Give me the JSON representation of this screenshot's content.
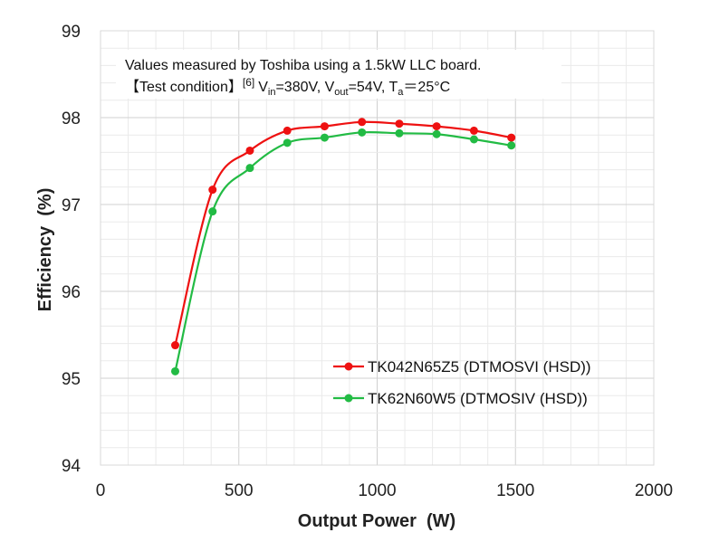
{
  "chart_data": {
    "type": "line",
    "title": "",
    "xlabel": "Output Power  (W)",
    "ylabel": "Efficiency  (%)",
    "xlim": [
      0,
      2000
    ],
    "ylim": [
      94,
      99
    ],
    "x_ticks": [
      0,
      500,
      1000,
      1500,
      2000
    ],
    "y_ticks": [
      94,
      95,
      96,
      97,
      98,
      99
    ],
    "x_ticks_labels": [
      "0",
      "500",
      "1000",
      "1500",
      "2000"
    ],
    "y_ticks_labels": [
      "94",
      "95",
      "96",
      "97",
      "98",
      "99"
    ],
    "grid": true,
    "legend_position": "lower-right",
    "series": [
      {
        "name": "TK042N65Z5 (DTMOSVI (HSD))",
        "color": "#ee1111",
        "x": [
          270,
          405,
          540,
          675,
          810,
          945,
          1080,
          1215,
          1350,
          1485
        ],
        "values": [
          95.38,
          97.17,
          97.62,
          97.85,
          97.9,
          97.95,
          97.93,
          97.9,
          97.85,
          97.77
        ]
      },
      {
        "name": "TK62N60W5 (DTMOSIV (HSD))",
        "color": "#22bb44",
        "x": [
          270,
          405,
          540,
          675,
          810,
          945,
          1080,
          1215,
          1350,
          1485
        ],
        "values": [
          95.08,
          96.92,
          97.42,
          97.71,
          97.77,
          97.83,
          97.82,
          97.81,
          97.75,
          97.68
        ]
      }
    ],
    "annotation": {
      "line1": "Values measured by Toshiba using a 1.5kW LLC board.",
      "bracket_open": "【",
      "test_label": "Test condition",
      "bracket_close": "】",
      "ref": "[6]",
      "v_symbol": "V",
      "vin_sub": "in",
      "vin_val": "=380V, ",
      "vout_sub": "out",
      "vout_val": "=54V, ",
      "t_symbol": "T",
      "ta_sub": "a",
      "ta_val": "＝25°C"
    }
  }
}
